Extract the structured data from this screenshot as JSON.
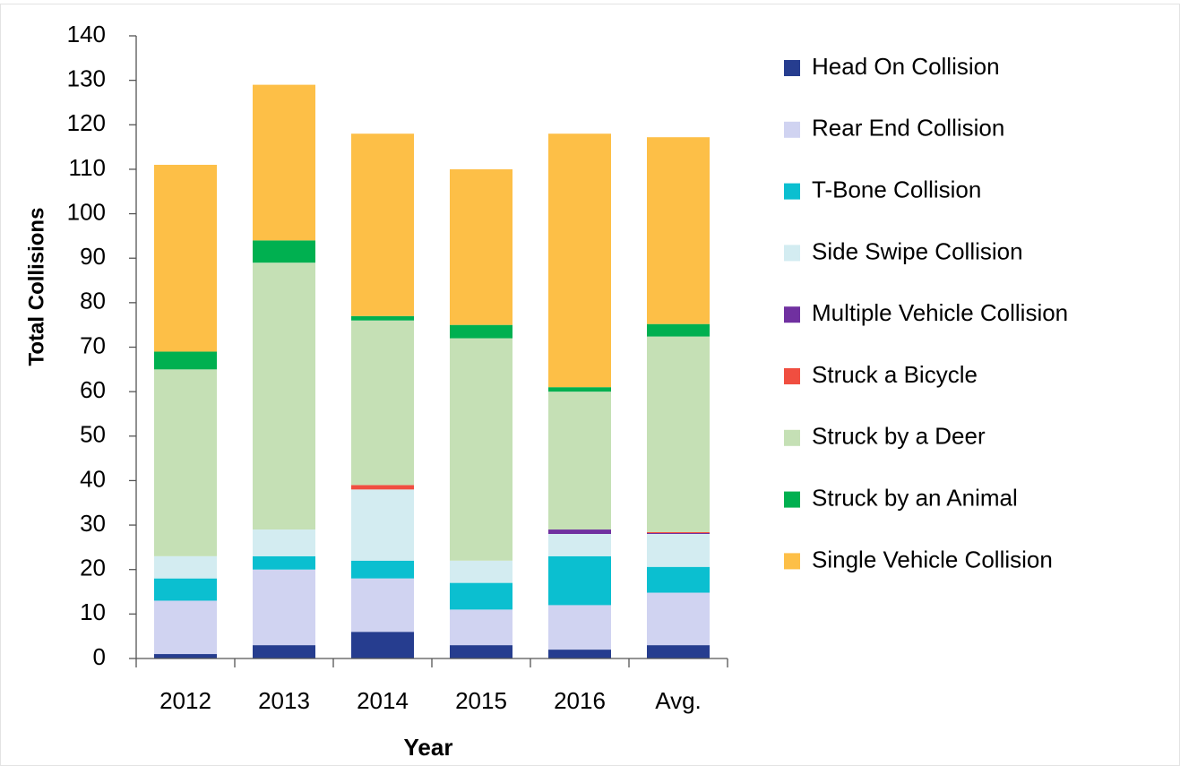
{
  "chart_data": {
    "type": "stacked_bar",
    "x_label": "Year",
    "y_label": "Total Collisions",
    "categories": [
      "2012",
      "2013",
      "2014",
      "2015",
      "2016",
      "Avg."
    ],
    "series": [
      {
        "name": "Head On Collision",
        "color": "#263d8f",
        "values": [
          1,
          3,
          6,
          3,
          2,
          3
        ]
      },
      {
        "name": "Rear End Collision",
        "color": "#d0d3f1",
        "values": [
          12,
          17,
          12,
          8,
          10,
          11.8
        ]
      },
      {
        "name": "T-Bone Collision",
        "color": "#0bbfd0",
        "values": [
          5,
          3,
          4,
          6,
          11,
          5.8
        ]
      },
      {
        "name": "Side Swipe Collision",
        "color": "#d3ecf1",
        "values": [
          5,
          6,
          16,
          5,
          5,
          7.4
        ]
      },
      {
        "name": "Multiple Vehicle Collision",
        "color": "#7030a0",
        "values": [
          0,
          0,
          0,
          0,
          1,
          0.2
        ]
      },
      {
        "name": "Struck a Bicycle",
        "color": "#f04e40",
        "values": [
          0,
          0,
          1,
          0,
          0,
          0.2
        ]
      },
      {
        "name": "Struck by a Deer",
        "color": "#c5e0b5",
        "values": [
          42,
          60,
          37,
          50,
          31,
          44
        ]
      },
      {
        "name": "Struck by an Animal",
        "color": "#00b050",
        "values": [
          4,
          5,
          1,
          3,
          1,
          2.8
        ]
      },
      {
        "name": "Single Vehicle Collision",
        "color": "#fdbf47",
        "values": [
          42,
          35,
          41,
          35,
          57,
          42
        ]
      }
    ],
    "ylim": [
      0,
      140
    ],
    "yticks": [
      0,
      10,
      20,
      30,
      40,
      50,
      60,
      70,
      80,
      90,
      100,
      110,
      120,
      130,
      140
    ],
    "legend": "right"
  }
}
